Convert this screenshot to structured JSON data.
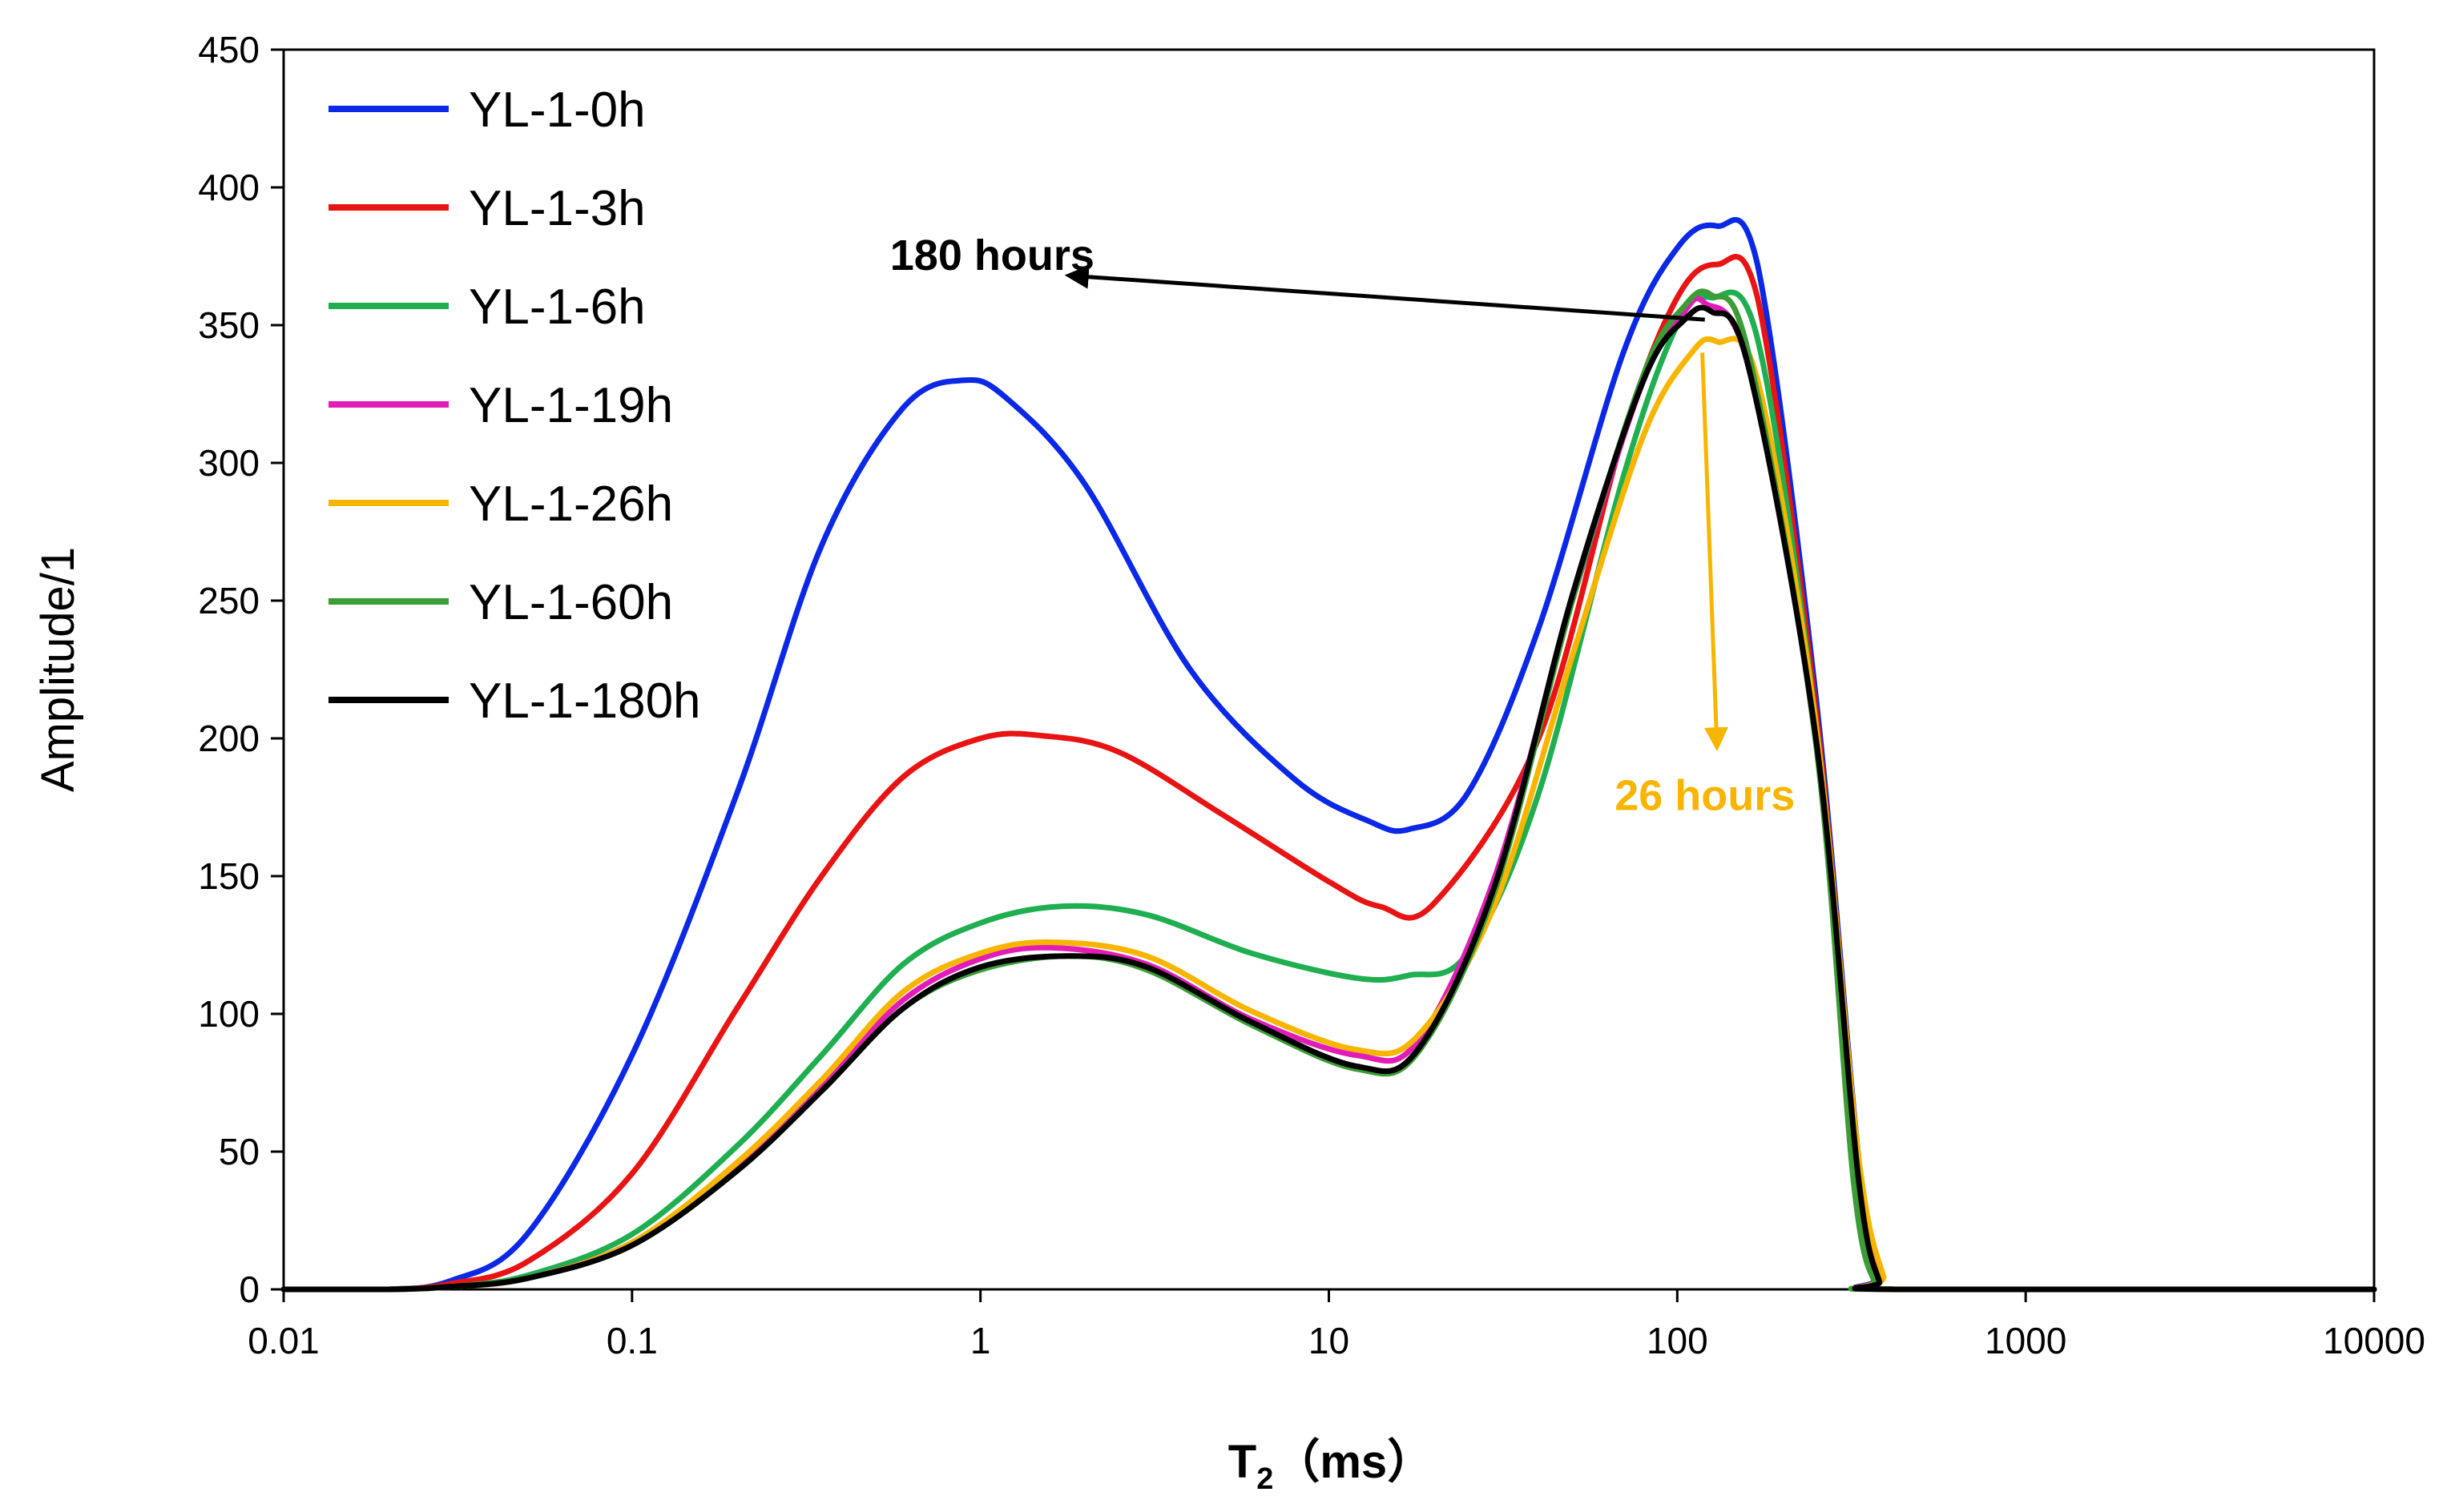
{
  "chart_data": {
    "type": "line",
    "title": "",
    "xlabel": "T",
    "xlabel_subscript": "2",
    "xlabel_unit": "（ms）",
    "ylabel": "Amplitude/1",
    "xscale": "log",
    "xlim": [
      0.01,
      10000
    ],
    "ylim": [
      0,
      450
    ],
    "x_ticks": [
      0.01,
      0.1,
      1,
      10,
      100,
      1000,
      10000
    ],
    "x_tick_labels": [
      "0.01",
      "0.1",
      "1",
      "10",
      "100",
      "1000",
      "10000"
    ],
    "y_ticks": [
      0,
      50,
      100,
      150,
      200,
      250,
      300,
      350,
      400,
      450
    ],
    "y_tick_labels": [
      "0",
      "50",
      "100",
      "150",
      "200",
      "250",
      "300",
      "350",
      "400",
      "450"
    ],
    "legend_position": "top-left",
    "series": [
      {
        "name": "YL-1-0h",
        "color": "#0a28e6",
        "x": [
          0.01,
          0.02,
          0.03,
          0.05,
          0.1,
          0.2,
          0.35,
          0.6,
          0.9,
          1.2,
          2,
          4,
          8,
          13,
          17,
          25,
          40,
          70,
          100,
          130,
          170,
          250,
          330,
          380,
          420,
          10000
        ],
        "y": [
          0,
          0,
          3,
          20,
          85,
          180,
          270,
          320,
          330,
          323,
          292,
          225,
          185,
          170,
          167,
          180,
          240,
          340,
          378,
          386,
          372,
          215,
          50,
          5,
          0,
          0
        ]
      },
      {
        "name": "YL-1-3h",
        "color": "#e81414",
        "x": [
          0.01,
          0.02,
          0.03,
          0.05,
          0.1,
          0.2,
          0.35,
          0.6,
          1.0,
          1.5,
          2.5,
          5,
          10,
          14,
          20,
          40,
          70,
          100,
          130,
          170,
          250,
          330,
          380,
          420,
          10000
        ],
        "y": [
          0,
          0,
          2,
          10,
          42,
          102,
          150,
          186,
          200,
          201,
          195,
          172,
          148,
          139,
          140,
          200,
          310,
          360,
          372,
          360,
          210,
          48,
          4,
          0,
          0
        ]
      },
      {
        "name": "YL-1-6h",
        "color": "#1fae50",
        "x": [
          0.01,
          0.02,
          0.03,
          0.05,
          0.1,
          0.2,
          0.35,
          0.6,
          1.0,
          1.7,
          3,
          6,
          12,
          17,
          25,
          40,
          70,
          100,
          125,
          170,
          250,
          330,
          380,
          420,
          10000
        ],
        "y": [
          0,
          0,
          1,
          5,
          20,
          52,
          85,
          118,
          133,
          139,
          136,
          122,
          113,
          114,
          122,
          180,
          295,
          350,
          360,
          345,
          205,
          45,
          3,
          0,
          0
        ]
      },
      {
        "name": "YL-1-19h",
        "color": "#e21cb7",
        "x": [
          0.01,
          0.02,
          0.03,
          0.05,
          0.1,
          0.2,
          0.35,
          0.6,
          1.0,
          1.6,
          3,
          6,
          12,
          18,
          30,
          50,
          80,
          105,
          120,
          160,
          250,
          330,
          380,
          420,
          10000
        ],
        "y": [
          0,
          0,
          1,
          4,
          17,
          45,
          74,
          105,
          120,
          124,
          118,
          98,
          85,
          90,
          150,
          250,
          330,
          355,
          358,
          335,
          200,
          44,
          3,
          0,
          0
        ]
      },
      {
        "name": "YL-1-26h",
        "color": "#f7b500",
        "x": [
          0.01,
          0.02,
          0.03,
          0.05,
          0.1,
          0.2,
          0.35,
          0.6,
          1.0,
          1.6,
          3,
          6,
          12,
          18,
          30,
          50,
          80,
          110,
          130,
          170,
          250,
          330,
          390,
          430,
          10000
        ],
        "y": [
          0,
          0,
          1,
          4,
          17,
          46,
          76,
          108,
          122,
          126,
          121,
          101,
          87,
          92,
          140,
          230,
          310,
          340,
          344,
          330,
          205,
          50,
          5,
          0,
          0
        ]
      },
      {
        "name": "YL-1-60h",
        "color": "#3c9c36",
        "x": [
          0.01,
          0.02,
          0.03,
          0.05,
          0.1,
          0.2,
          0.35,
          0.6,
          1.0,
          1.8,
          3,
          6,
          12,
          18,
          30,
          50,
          80,
          105,
          125,
          160,
          250,
          320,
          370,
          410,
          10000
        ],
        "y": [
          0,
          0,
          1,
          4,
          16,
          43,
          72,
          102,
          116,
          121,
          116,
          96,
          80,
          86,
          145,
          250,
          332,
          357,
          361,
          340,
          198,
          40,
          2,
          0,
          0
        ]
      },
      {
        "name": "YL-1-180h",
        "color": "#000000",
        "x": [
          0.01,
          0.02,
          0.03,
          0.05,
          0.1,
          0.2,
          0.35,
          0.6,
          1.0,
          1.8,
          3,
          6,
          12,
          18,
          30,
          50,
          80,
          105,
          125,
          160,
          250,
          330,
          380,
          420,
          10000
        ],
        "y": [
          0,
          0,
          1,
          4,
          16,
          43,
          72,
          102,
          117,
          121,
          117,
          97,
          81,
          87,
          147,
          252,
          330,
          352,
          355,
          335,
          200,
          42,
          3,
          0,
          0
        ]
      }
    ],
    "annotations": [
      {
        "text": "180 hours",
        "color": "#000000",
        "arrow_from": [
          120,
          352
        ],
        "arrow_to": [
          1.8,
          368
        ],
        "label_at": [
          0.55,
          370
        ]
      },
      {
        "text": "26 hours",
        "color": "#f7b500",
        "arrow_from": [
          118,
          340
        ],
        "arrow_to": [
          130,
          197
        ],
        "label_at": [
          120,
          174
        ]
      }
    ]
  }
}
